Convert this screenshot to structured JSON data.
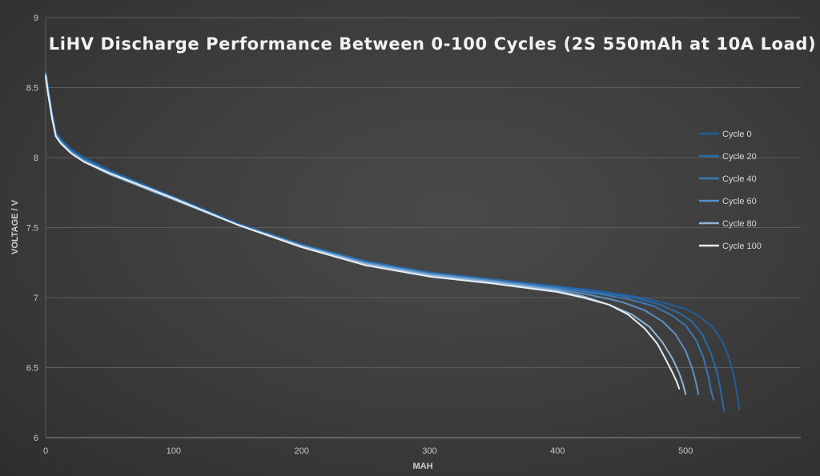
{
  "chart_data": {
    "type": "line",
    "title": "LiHV Discharge Performance Between 0-100 Cycles (2S 550mAh at 10A Load)",
    "xlabel": "MAH",
    "ylabel": "VOLTAGE / V",
    "xlim": [
      0,
      590
    ],
    "ylim": [
      6,
      9
    ],
    "xticks": [
      0,
      100,
      200,
      300,
      400,
      500
    ],
    "yticks": [
      6,
      6.5,
      7,
      7.5,
      8,
      8.5,
      9
    ],
    "grid": "horizontal",
    "legend_position": "right",
    "series": [
      {
        "name": "Cycle 0",
        "color": "#1f5f9e",
        "x": [
          0,
          2,
          5,
          8,
          12,
          20,
          30,
          50,
          100,
          150,
          200,
          250,
          300,
          350,
          400,
          430,
          460,
          480,
          500,
          510,
          520,
          528,
          534,
          538,
          540,
          542
        ],
        "y": [
          8.62,
          8.5,
          8.33,
          8.18,
          8.13,
          8.06,
          8.0,
          7.91,
          7.72,
          7.53,
          7.38,
          7.26,
          7.18,
          7.13,
          7.08,
          7.05,
          7.01,
          6.97,
          6.92,
          6.87,
          6.8,
          6.7,
          6.57,
          6.43,
          6.32,
          6.2
        ]
      },
      {
        "name": "Cycle 20",
        "color": "#2a6aa8",
        "x": [
          0,
          2,
          5,
          8,
          12,
          20,
          30,
          50,
          100,
          150,
          200,
          250,
          300,
          350,
          400,
          430,
          460,
          480,
          495,
          505,
          513,
          520,
          525,
          528,
          530
        ],
        "y": [
          8.61,
          8.49,
          8.32,
          8.17,
          8.12,
          8.05,
          7.99,
          7.9,
          7.72,
          7.53,
          7.38,
          7.26,
          7.18,
          7.13,
          7.08,
          7.04,
          7.0,
          6.95,
          6.89,
          6.83,
          6.74,
          6.6,
          6.45,
          6.31,
          6.19
        ]
      },
      {
        "name": "Cycle 40",
        "color": "#3a78b8",
        "x": [
          0,
          2,
          5,
          8,
          12,
          20,
          30,
          50,
          100,
          150,
          200,
          250,
          300,
          350,
          400,
          430,
          455,
          475,
          490,
          500,
          508,
          514,
          518,
          520,
          522
        ],
        "y": [
          8.6,
          8.48,
          8.31,
          8.16,
          8.11,
          8.04,
          7.98,
          7.89,
          7.71,
          7.52,
          7.37,
          7.25,
          7.17,
          7.12,
          7.07,
          7.03,
          6.99,
          6.94,
          6.87,
          6.8,
          6.7,
          6.57,
          6.43,
          6.33,
          6.27
        ]
      },
      {
        "name": "Cycle 60",
        "color": "#5a90c8",
        "x": [
          0,
          2,
          5,
          8,
          12,
          20,
          30,
          50,
          100,
          150,
          200,
          250,
          300,
          350,
          400,
          425,
          450,
          468,
          482,
          492,
          500,
          505,
          508,
          510
        ],
        "y": [
          8.6,
          8.47,
          8.3,
          8.16,
          8.11,
          8.04,
          7.98,
          7.89,
          7.71,
          7.52,
          7.37,
          7.25,
          7.17,
          7.12,
          7.06,
          7.02,
          6.97,
          6.91,
          6.83,
          6.74,
          6.62,
          6.5,
          6.4,
          6.31
        ]
      },
      {
        "name": "Cycle 80",
        "color": "#8fb4d8",
        "x": [
          0,
          2,
          5,
          8,
          12,
          20,
          30,
          50,
          100,
          150,
          200,
          250,
          300,
          350,
          400,
          420,
          440,
          458,
          472,
          482,
          490,
          495,
          498,
          500
        ],
        "y": [
          8.59,
          8.46,
          8.29,
          8.15,
          8.1,
          8.03,
          7.97,
          7.88,
          7.7,
          7.52,
          7.37,
          7.24,
          7.16,
          7.11,
          7.05,
          7.01,
          6.95,
          6.88,
          6.79,
          6.68,
          6.56,
          6.46,
          6.38,
          6.31
        ]
      },
      {
        "name": "Cycle 100",
        "color": "#e6eef6",
        "x": [
          0,
          2,
          5,
          8,
          12,
          20,
          30,
          50,
          100,
          150,
          200,
          250,
          300,
          350,
          400,
          420,
          440,
          455,
          468,
          478,
          485,
          490,
          493,
          495
        ],
        "y": [
          8.58,
          8.45,
          8.28,
          8.15,
          8.1,
          8.03,
          7.97,
          7.89,
          7.71,
          7.52,
          7.36,
          7.23,
          7.15,
          7.1,
          7.04,
          7.0,
          6.95,
          6.88,
          6.78,
          6.67,
          6.55,
          6.46,
          6.4,
          6.35
        ]
      }
    ]
  }
}
